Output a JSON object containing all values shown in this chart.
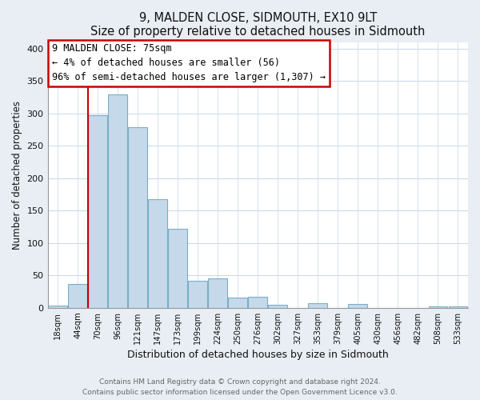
{
  "title": "9, MALDEN CLOSE, SIDMOUTH, EX10 9LT",
  "subtitle": "Size of property relative to detached houses in Sidmouth",
  "xlabel": "Distribution of detached houses by size in Sidmouth",
  "ylabel": "Number of detached properties",
  "bar_labels": [
    "18sqm",
    "44sqm",
    "70sqm",
    "96sqm",
    "121sqm",
    "147sqm",
    "173sqm",
    "199sqm",
    "224sqm",
    "250sqm",
    "276sqm",
    "302sqm",
    "327sqm",
    "353sqm",
    "379sqm",
    "405sqm",
    "430sqm",
    "456sqm",
    "482sqm",
    "508sqm",
    "533sqm"
  ],
  "bar_values": [
    3,
    37,
    297,
    329,
    279,
    168,
    122,
    42,
    45,
    16,
    17,
    5,
    0,
    7,
    0,
    6,
    0,
    0,
    0,
    2,
    2
  ],
  "bar_color": "#c5d9ea",
  "bar_edge_color": "#7aaec8",
  "property_label": "9 MALDEN CLOSE: 75sqm",
  "annotation_line1": "← 4% of detached houses are smaller (56)",
  "annotation_line2": "96% of semi-detached houses are larger (1,307) →",
  "vline_color": "#cc0000",
  "vline_x": 1.5,
  "ylim": [
    0,
    410
  ],
  "yticks": [
    0,
    50,
    100,
    150,
    200,
    250,
    300,
    350,
    400
  ],
  "footer_line1": "Contains HM Land Registry data © Crown copyright and database right 2024.",
  "footer_line2": "Contains public sector information licensed under the Open Government Licence v3.0.",
  "bg_color": "#e8eef4",
  "plot_bg_color": "#ffffff",
  "annotation_box_color": "#ffffff",
  "annotation_box_edge_color": "#cc0000",
  "grid_color": "#c8d8e8"
}
